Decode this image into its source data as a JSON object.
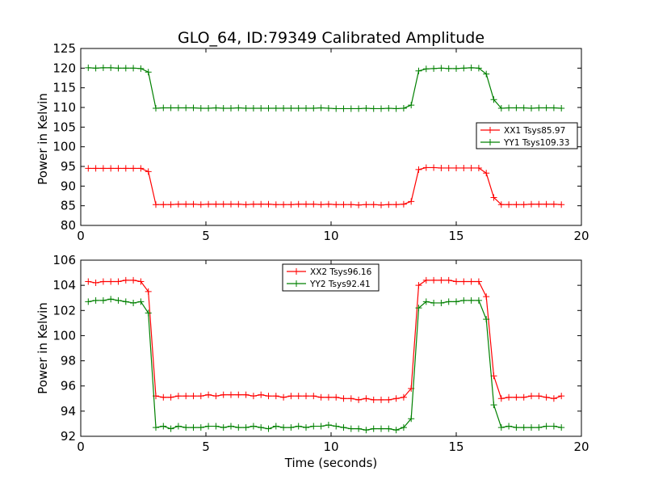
{
  "chart_data": [
    {
      "type": "line",
      "title": "GLO_64, ID:79349 Calibrated Amplitude",
      "xlabel": "",
      "ylabel": "Power in Kelvin",
      "xlim": [
        0,
        20
      ],
      "ylim": [
        80,
        125
      ],
      "xticks": [
        0,
        5,
        10,
        15,
        20
      ],
      "yticks": [
        80,
        85,
        90,
        95,
        100,
        105,
        110,
        115,
        120,
        125
      ],
      "grid": false,
      "legend_position": "center-right",
      "x": [
        0.3,
        0.6,
        0.9,
        1.2,
        1.5,
        1.8,
        2.1,
        2.4,
        2.7,
        3.0,
        3.3,
        3.6,
        3.9,
        4.2,
        4.5,
        4.8,
        5.1,
        5.4,
        5.7,
        6.0,
        6.3,
        6.6,
        6.9,
        7.2,
        7.5,
        7.8,
        8.1,
        8.4,
        8.7,
        9.0,
        9.3,
        9.6,
        9.9,
        10.2,
        10.5,
        10.8,
        11.1,
        11.4,
        11.7,
        12.0,
        12.3,
        12.6,
        12.9,
        13.2,
        13.5,
        13.8,
        14.1,
        14.4,
        14.7,
        15.0,
        15.3,
        15.6,
        15.9,
        16.2,
        16.5,
        16.8,
        17.1,
        17.4,
        17.7,
        18.0,
        18.3,
        18.6,
        18.9,
        19.2
      ],
      "series": [
        {
          "name": "XX1 Tsys85.97",
          "color": "#ff0000",
          "values": [
            94.5,
            94.5,
            94.5,
            94.5,
            94.5,
            94.5,
            94.5,
            94.5,
            93.7,
            85.3,
            85.3,
            85.3,
            85.4,
            85.4,
            85.4,
            85.3,
            85.4,
            85.4,
            85.4,
            85.4,
            85.4,
            85.3,
            85.4,
            85.4,
            85.4,
            85.3,
            85.3,
            85.3,
            85.4,
            85.4,
            85.4,
            85.3,
            85.4,
            85.3,
            85.3,
            85.3,
            85.2,
            85.3,
            85.3,
            85.2,
            85.3,
            85.3,
            85.4,
            86.1,
            94.2,
            94.7,
            94.7,
            94.6,
            94.6,
            94.6,
            94.6,
            94.6,
            94.6,
            93.3,
            87.1,
            85.3,
            85.3,
            85.3,
            85.3,
            85.4,
            85.4,
            85.4,
            85.4,
            85.3
          ]
        },
        {
          "name": "YY1 Tsys109.33",
          "color": "#008000",
          "values": [
            120.1,
            120.0,
            120.1,
            120.1,
            120.0,
            120.0,
            120.0,
            119.9,
            119.0,
            109.8,
            109.9,
            109.9,
            109.9,
            109.9,
            109.9,
            109.8,
            109.8,
            109.9,
            109.8,
            109.8,
            109.9,
            109.8,
            109.8,
            109.8,
            109.8,
            109.8,
            109.8,
            109.8,
            109.8,
            109.8,
            109.8,
            109.9,
            109.8,
            109.7,
            109.7,
            109.7,
            109.7,
            109.8,
            109.7,
            109.7,
            109.8,
            109.7,
            109.8,
            110.6,
            119.3,
            119.8,
            119.9,
            120.0,
            119.9,
            119.9,
            120.0,
            120.1,
            120.0,
            118.5,
            112.0,
            109.8,
            109.9,
            109.9,
            109.9,
            109.8,
            109.9,
            109.9,
            109.9,
            109.8
          ]
        }
      ]
    },
    {
      "type": "line",
      "title": "",
      "xlabel": "Time (seconds)",
      "ylabel": "Power in Kelvin",
      "xlim": [
        0,
        20
      ],
      "ylim": [
        92,
        106
      ],
      "xticks": [
        0,
        5,
        10,
        15,
        20
      ],
      "yticks": [
        92,
        94,
        96,
        98,
        100,
        102,
        104,
        106
      ],
      "grid": false,
      "legend_position": "top-center",
      "x": [
        0.3,
        0.6,
        0.9,
        1.2,
        1.5,
        1.8,
        2.1,
        2.4,
        2.7,
        3.0,
        3.3,
        3.6,
        3.9,
        4.2,
        4.5,
        4.8,
        5.1,
        5.4,
        5.7,
        6.0,
        6.3,
        6.6,
        6.9,
        7.2,
        7.5,
        7.8,
        8.1,
        8.4,
        8.7,
        9.0,
        9.3,
        9.6,
        9.9,
        10.2,
        10.5,
        10.8,
        11.1,
        11.4,
        11.7,
        12.0,
        12.3,
        12.6,
        12.9,
        13.2,
        13.5,
        13.8,
        14.1,
        14.4,
        14.7,
        15.0,
        15.3,
        15.6,
        15.9,
        16.2,
        16.5,
        16.8,
        17.1,
        17.4,
        17.7,
        18.0,
        18.3,
        18.6,
        18.9,
        19.2
      ],
      "series": [
        {
          "name": "XX2 Tsys96.16",
          "color": "#ff0000",
          "values": [
            104.3,
            104.2,
            104.3,
            104.3,
            104.3,
            104.4,
            104.4,
            104.3,
            103.5,
            95.2,
            95.1,
            95.1,
            95.2,
            95.2,
            95.2,
            95.2,
            95.3,
            95.2,
            95.3,
            95.3,
            95.3,
            95.3,
            95.2,
            95.3,
            95.2,
            95.2,
            95.1,
            95.2,
            95.2,
            95.2,
            95.2,
            95.1,
            95.1,
            95.1,
            95.0,
            95.0,
            94.9,
            95.0,
            94.9,
            94.9,
            94.9,
            95.0,
            95.1,
            95.8,
            104.0,
            104.4,
            104.4,
            104.4,
            104.4,
            104.3,
            104.3,
            104.3,
            104.3,
            103.1,
            96.8,
            95.0,
            95.1,
            95.1,
            95.1,
            95.2,
            95.2,
            95.1,
            95.0,
            95.2
          ]
        },
        {
          "name": "YY2 Tsys92.41",
          "color": "#008000",
          "values": [
            102.7,
            102.8,
            102.8,
            102.9,
            102.8,
            102.7,
            102.6,
            102.7,
            101.8,
            92.7,
            92.8,
            92.6,
            92.8,
            92.7,
            92.7,
            92.7,
            92.8,
            92.8,
            92.7,
            92.8,
            92.7,
            92.7,
            92.8,
            92.7,
            92.6,
            92.8,
            92.7,
            92.7,
            92.8,
            92.7,
            92.8,
            92.8,
            92.9,
            92.8,
            92.7,
            92.6,
            92.6,
            92.5,
            92.6,
            92.6,
            92.6,
            92.5,
            92.7,
            93.4,
            102.2,
            102.7,
            102.6,
            102.6,
            102.7,
            102.7,
            102.8,
            102.8,
            102.8,
            101.3,
            94.5,
            92.7,
            92.8,
            92.7,
            92.7,
            92.7,
            92.7,
            92.8,
            92.8,
            92.7
          ]
        }
      ]
    }
  ]
}
